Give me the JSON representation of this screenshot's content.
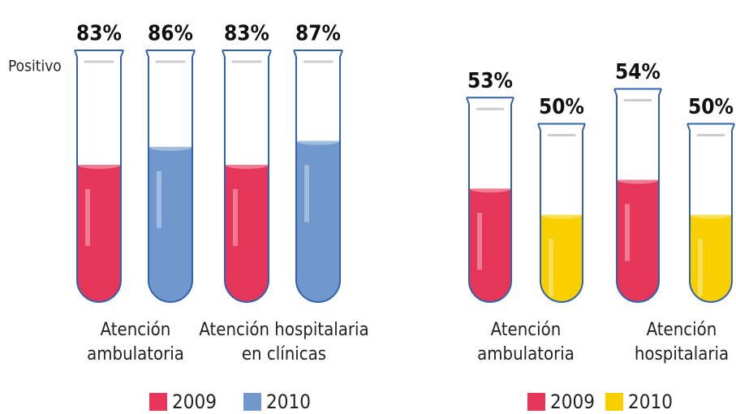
{
  "chart_data": [
    {
      "type": "bar",
      "y_label": "Positivo",
      "categories": [
        "Atención ambulatoria",
        "Atención hospitalaria en clínicas"
      ],
      "series": [
        {
          "name": "2009",
          "color": "#e5365a",
          "values": [
            83,
            83
          ],
          "value_labels": [
            "83%",
            "83%"
          ]
        },
        {
          "name": "2010",
          "color": "#7098cc",
          "values": [
            86,
            87
          ],
          "value_labels": [
            "86%",
            "87%"
          ]
        }
      ],
      "ylim": [
        60,
        100
      ]
    },
    {
      "type": "bar",
      "categories": [
        "Atención ambulatoria",
        "Atención hospitalaria"
      ],
      "series": [
        {
          "name": "2009",
          "color": "#e5365a",
          "values": [
            53,
            54
          ],
          "value_labels": [
            "53%",
            "54%"
          ]
        },
        {
          "name": "2010",
          "color": "#f8d000",
          "values": [
            50,
            50
          ],
          "value_labels": [
            "50%",
            "50%"
          ]
        }
      ],
      "ylim": [
        40,
        60
      ]
    }
  ]
}
